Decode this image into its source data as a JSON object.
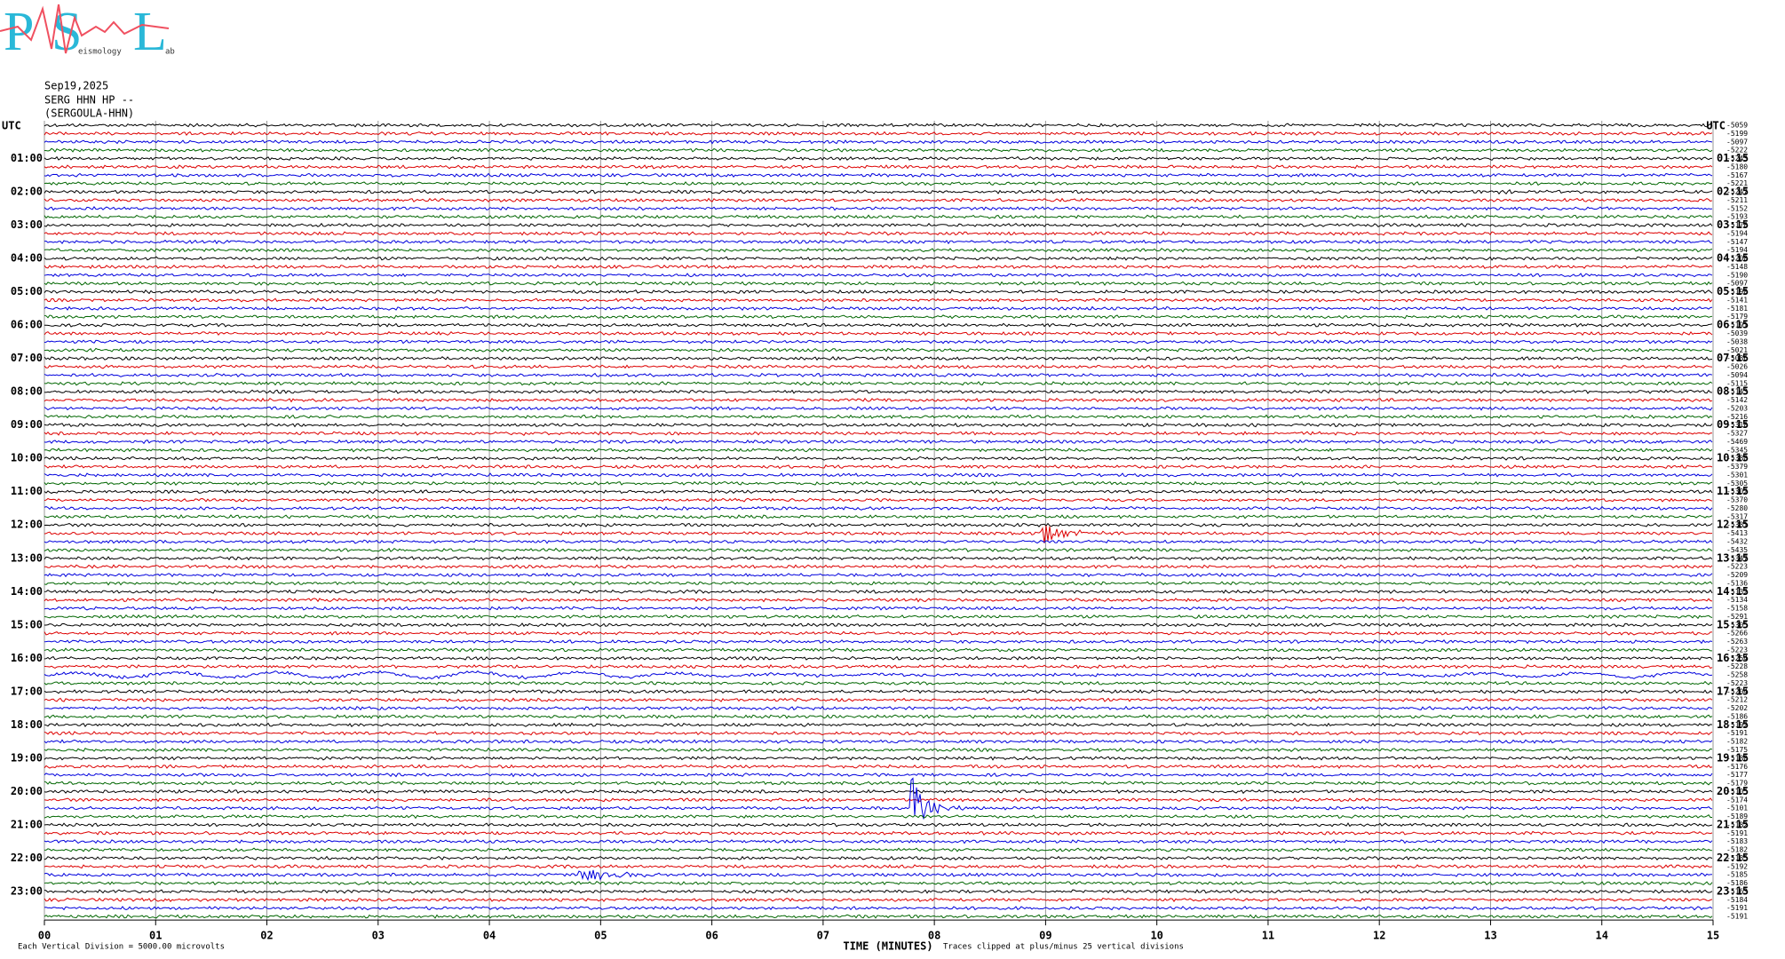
{
  "header": {
    "logo": {
      "letters": [
        "P",
        "S",
        "L"
      ],
      "subtext": [
        "eismology",
        "ab"
      ]
    },
    "date": "Sep19,2025",
    "station": "SERG HHN HP --",
    "channel": "(SERGOULA-HHN)"
  },
  "left_axis": {
    "title": "UTC",
    "labels": [
      "01:00",
      "02:00",
      "03:00",
      "04:00",
      "05:00",
      "06:00",
      "07:00",
      "08:00",
      "09:00",
      "10:00",
      "11:00",
      "12:00",
      "13:00",
      "14:00",
      "15:00",
      "16:00",
      "17:00",
      "18:00",
      "19:00",
      "20:00",
      "21:00",
      "22:00",
      "23:00"
    ]
  },
  "right_axis": {
    "title": "UTC",
    "labels": [
      "01:15",
      "02:15",
      "03:15",
      "04:15",
      "05:15",
      "06:15",
      "07:15",
      "08:15",
      "09:15",
      "10:15",
      "11:15",
      "12:15",
      "13:15",
      "14:15",
      "15:15",
      "16:15",
      "17:15",
      "18:15",
      "19:15",
      "20:15",
      "21:15",
      "22:15",
      "23:15"
    ],
    "trace_offsets": [
      "-5059",
      "-5199",
      "-5097",
      "-5222",
      "-5243",
      "-5180",
      "-5167",
      "-5221",
      "-5247",
      "-5211",
      "-5152",
      "-5193",
      "-5170",
      "-5194",
      "-5147",
      "-5194",
      "-5200",
      "-5148",
      "-5190",
      "-5097",
      "-5190",
      "-5141",
      "-5181",
      "-5179",
      "-5191",
      "-5039",
      "-5038",
      "-5021",
      "-5086",
      "-5026",
      "-5094",
      "-5115",
      "-5143",
      "-5142",
      "-5203",
      "-5216",
      "-5310",
      "-5327",
      "-5469",
      "-5345",
      "-5388",
      "-5379",
      "-5301",
      "-5305",
      "-5302",
      "-5370",
      "-5280",
      "-5317",
      "-5381",
      "-5413",
      "-5432",
      "-5435",
      "-5347",
      "-5223",
      "-5209",
      "-5136",
      "-5132",
      "-5134",
      "-5158",
      "-5291",
      "-5305",
      "-5266",
      "-5263",
      "-5223",
      "-5254",
      "-5228",
      "-5258",
      "-5223",
      "-5204",
      "-5212",
      "-5202",
      "-5186",
      "-5192",
      "-5191",
      "-5182",
      "-5175",
      "-5180",
      "-5176",
      "-5177",
      "-5179",
      "-5105",
      "-5174",
      "-5101",
      "-5189",
      "-5182",
      "-5191",
      "-5183",
      "-5182",
      "-5185",
      "-5192",
      "-5185",
      "-5186",
      "-5163",
      "-5184",
      "-5191",
      "-5191"
    ]
  },
  "trace_colors": [
    "#000000",
    "#dd0000",
    "#0000dd",
    "#006600"
  ],
  "bottom_axis": {
    "labels": [
      "00",
      "01",
      "02",
      "03",
      "04",
      "05",
      "06",
      "07",
      "08",
      "09",
      "10",
      "11",
      "12",
      "13",
      "14",
      "15"
    ],
    "title": "TIME (MINUTES)"
  },
  "footer": {
    "scale_note": "Each Vertical Division = 5000.00 microvolts",
    "clip_note": "Traces clipped at plus/minus 25 vertical divisions"
  }
}
